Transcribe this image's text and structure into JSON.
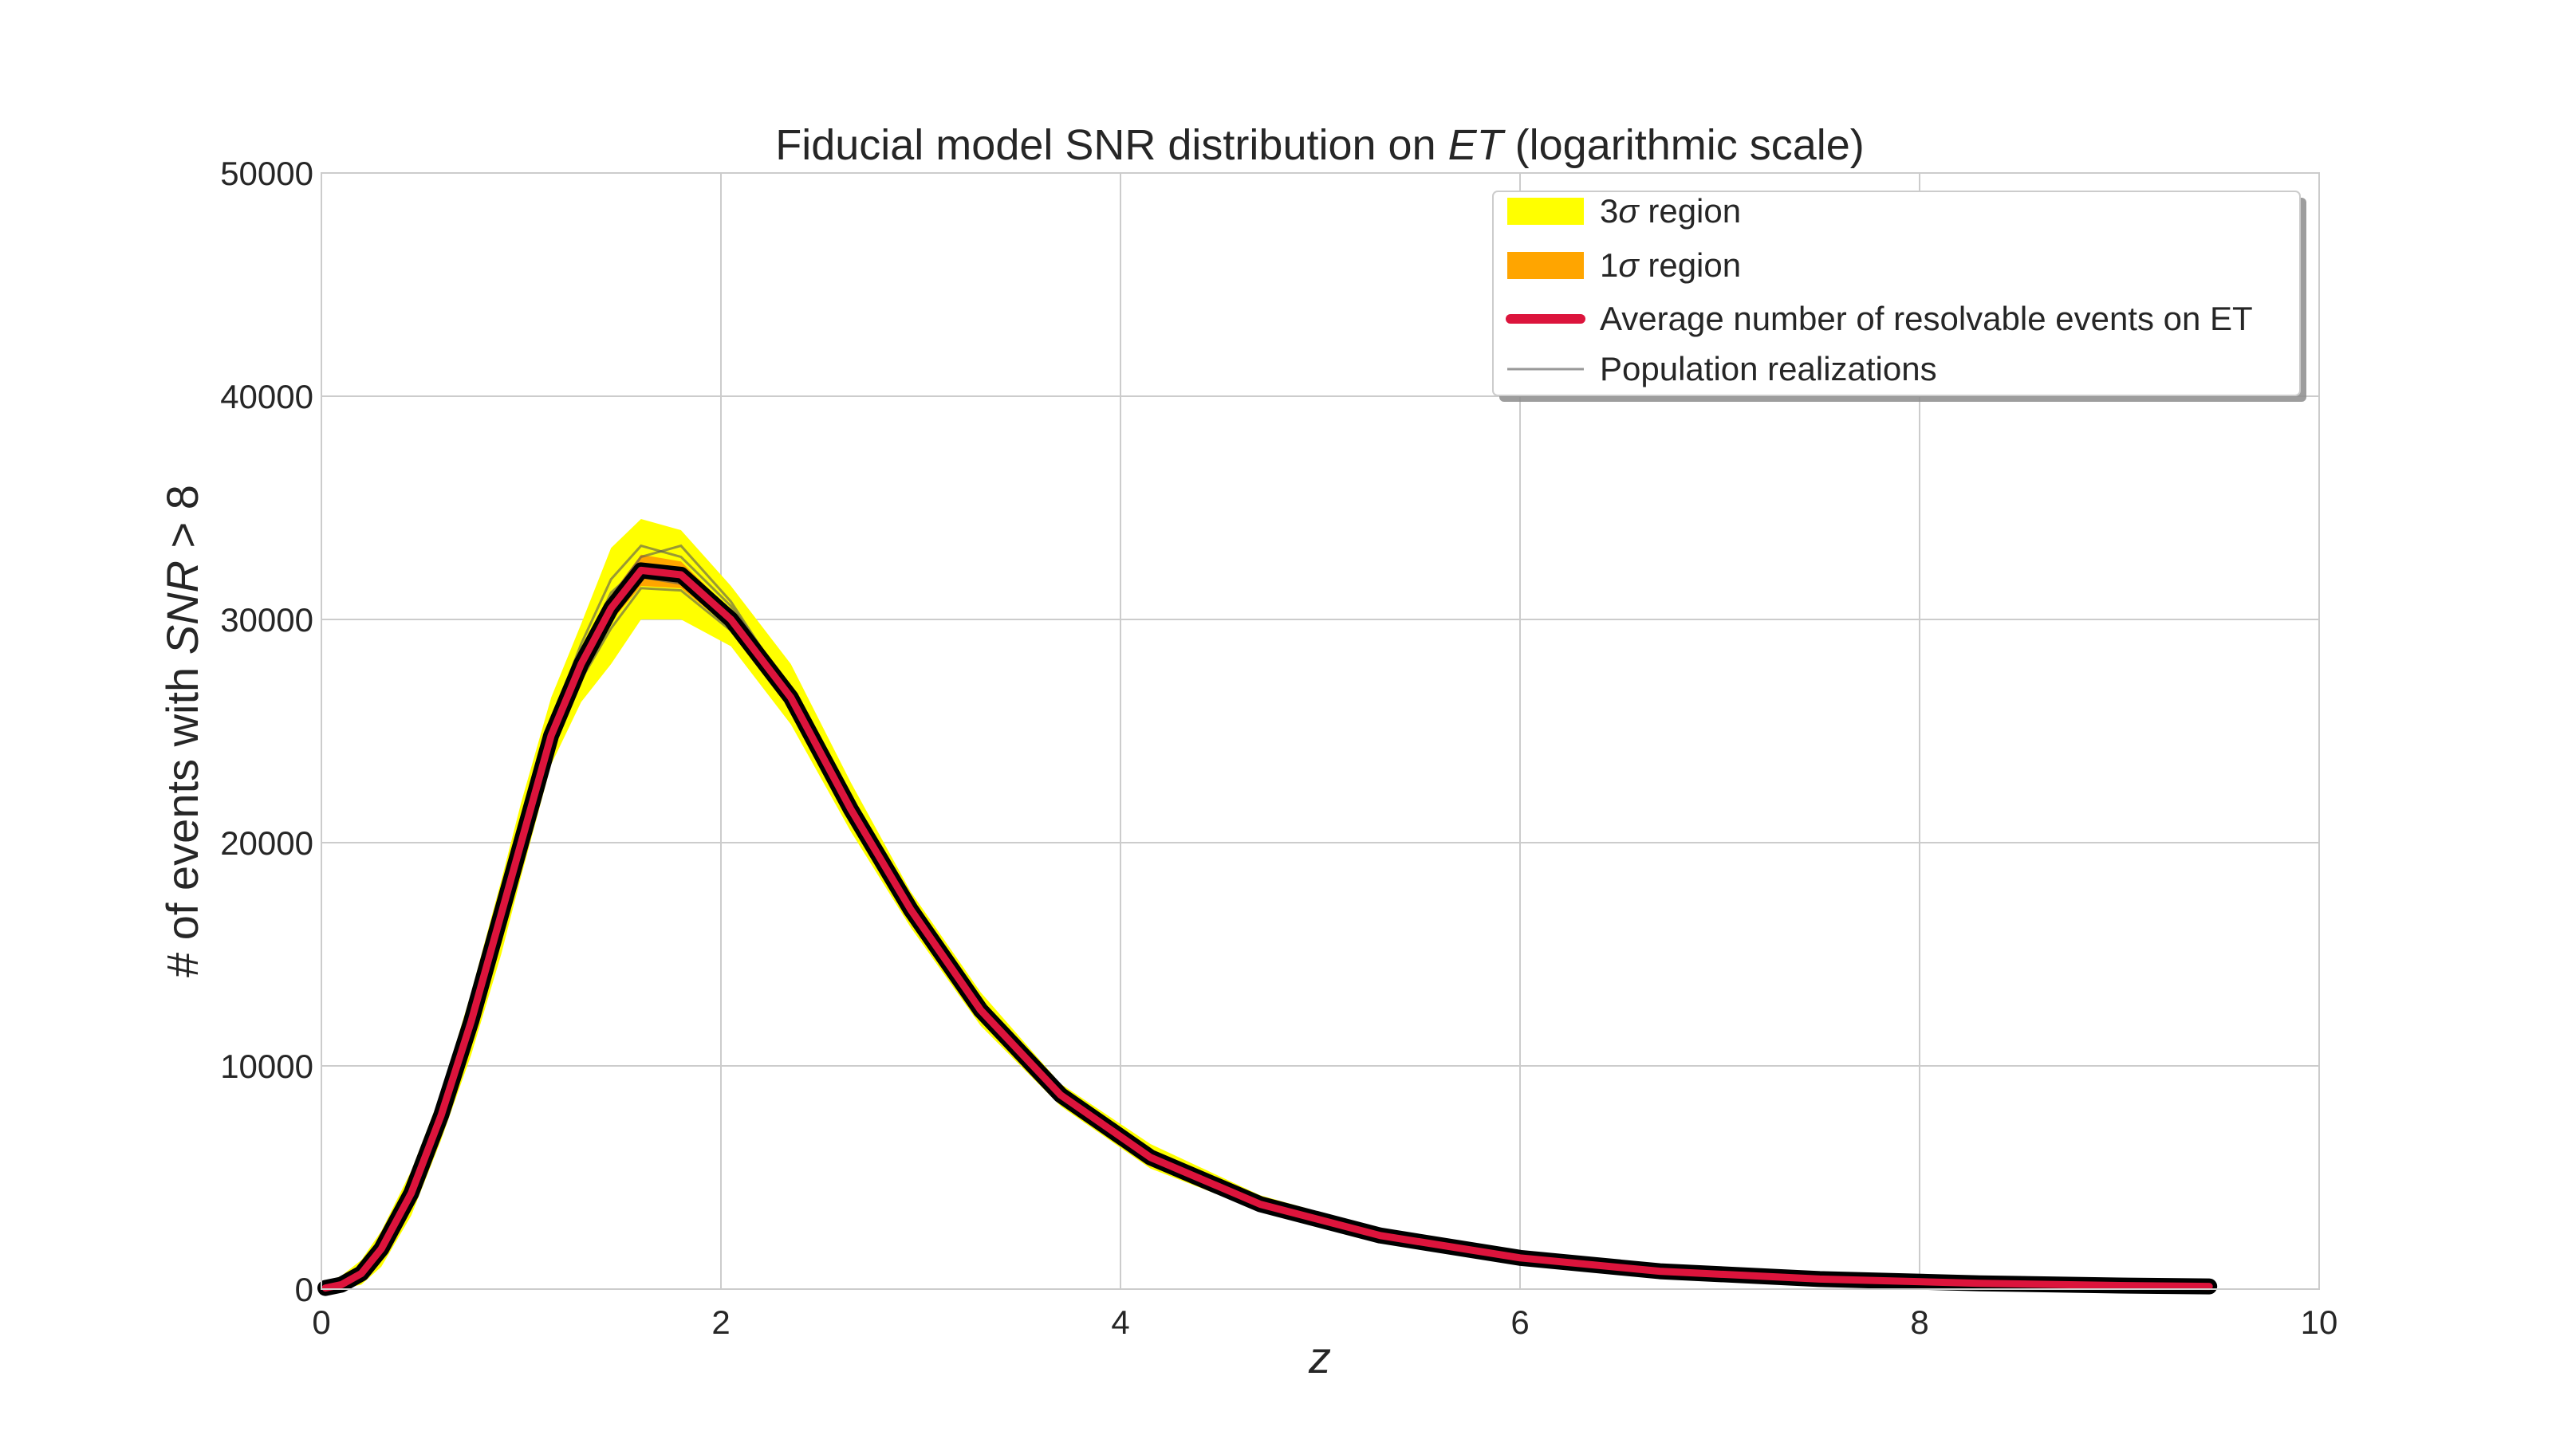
{
  "chart_data": {
    "type": "area",
    "title_parts": [
      {
        "text": "Fiducial model SNR distribution on ",
        "italic": false
      },
      {
        "text": "ET",
        "italic": true
      },
      {
        "text": " (logarithmic scale)",
        "italic": false
      }
    ],
    "xlabel": "z",
    "ylabel_parts": [
      {
        "text": "# of events with ",
        "italic": false
      },
      {
        "text": "SNR",
        "italic": true
      },
      {
        "text": " > 8",
        "italic": false
      }
    ],
    "xlim": [
      0,
      10
    ],
    "ylim": [
      0,
      50000
    ],
    "x_ticks": [
      "0",
      "2",
      "4",
      "6",
      "8",
      "10"
    ],
    "y_ticks": [
      "0",
      "10000",
      "20000",
      "30000",
      "40000",
      "50000"
    ],
    "grid": true,
    "legend_position": "top-right",
    "legend": [
      {
        "math": "3",
        "sym": "σ",
        "text": " region",
        "kind": "patch",
        "color": "#ffff00"
      },
      {
        "math": "1",
        "sym": "σ",
        "text": " region",
        "kind": "patch",
        "color": "#ffa500"
      },
      {
        "math": "",
        "sym": "",
        "text": "Average number of resolvable events on ET",
        "kind": "line-thick",
        "color": "#dc143c"
      },
      {
        "math": "",
        "sym": "",
        "text": "Population realizations",
        "kind": "line-thin",
        "color": "#999999"
      }
    ],
    "colors": {
      "sigma3": "#ffff00",
      "sigma1": "#ffa500",
      "mean": "#dc143c",
      "realizations": "#555555"
    },
    "x": [
      0.02,
      0.1,
      0.2,
      0.3,
      0.45,
      0.6,
      0.75,
      0.9,
      1.0,
      1.15,
      1.3,
      1.45,
      1.6,
      1.8,
      2.05,
      2.35,
      2.65,
      2.95,
      3.3,
      3.7,
      4.15,
      4.7,
      5.3,
      6.0,
      6.7,
      7.5,
      8.3,
      9.0,
      9.45
    ],
    "series": [
      {
        "name": "Average number of resolvable events on ET",
        "role": "mean",
        "values": [
          50,
          200,
          700,
          1800,
          4300,
          7800,
          12000,
          16800,
          20000,
          24800,
          28000,
          30500,
          32200,
          32000,
          30000,
          26500,
          21500,
          17000,
          12500,
          8700,
          5900,
          3800,
          2400,
          1400,
          800,
          450,
          260,
          160,
          120
        ]
      },
      {
        "name": "3σ region",
        "role": "sigma3",
        "lower": [
          0,
          0,
          200,
          1000,
          3300,
          6700,
          10500,
          15000,
          18500,
          23500,
          26300,
          28000,
          30000,
          30000,
          28800,
          25300,
          20500,
          16200,
          11800,
          8200,
          5400,
          3500,
          2200,
          1200,
          700,
          350,
          180,
          90,
          60
        ],
        "upper": [
          300,
          600,
          1300,
          2600,
          5300,
          8800,
          13300,
          18300,
          21800,
          26500,
          29800,
          33200,
          34500,
          34000,
          31500,
          28000,
          22700,
          17800,
          13300,
          9200,
          6500,
          4200,
          2700,
          1700,
          1000,
          600,
          360,
          240,
          180
        ]
      },
      {
        "name": "1σ region",
        "role": "sigma1",
        "lower": [
          20,
          120,
          550,
          1600,
          4100,
          7500,
          11600,
          16300,
          19600,
          24400,
          27500,
          29900,
          31500,
          31400,
          29600,
          26200,
          21300,
          16800,
          12300,
          8550,
          5750,
          3700,
          2320,
          1330,
          760,
          420,
          235,
          140,
          100
        ],
        "upper": [
          100,
          280,
          850,
          2000,
          4550,
          8100,
          12400,
          17300,
          20400,
          25200,
          28500,
          31100,
          32900,
          32600,
          30400,
          26800,
          21700,
          17200,
          12700,
          8850,
          6050,
          3900,
          2480,
          1470,
          840,
          480,
          285,
          180,
          140
        ]
      },
      {
        "role": "realization",
        "values": [
          60,
          250,
          800,
          2000,
          4700,
          8200,
          12600,
          17500,
          20600,
          25400,
          28900,
          31800,
          33300,
          32800,
          30600,
          26900,
          21800,
          17200,
          12700,
          8800,
          6000,
          3850,
          2450,
          1440,
          820,
          460,
          270,
          170,
          130
        ]
      },
      {
        "role": "realization",
        "values": [
          40,
          160,
          600,
          1650,
          4000,
          7400,
          11500,
          16200,
          19500,
          24300,
          27300,
          29600,
          31400,
          31300,
          29500,
          26100,
          21200,
          16800,
          12300,
          8600,
          5800,
          3750,
          2350,
          1360,
          780,
          440,
          250,
          150,
          110
        ]
      },
      {
        "role": "realization",
        "values": [
          70,
          220,
          750,
          1900,
          4400,
          8000,
          12300,
          17000,
          20300,
          25000,
          28300,
          31000,
          32800,
          33300,
          30800,
          26700,
          21600,
          17100,
          12600,
          8750,
          5950,
          3820,
          2420,
          1420,
          810,
          455,
          265,
          165,
          125
        ]
      },
      {
        "role": "realization",
        "values": [
          30,
          150,
          650,
          1700,
          4200,
          7600,
          11800,
          16500,
          19800,
          24600,
          27700,
          30100,
          31900,
          31600,
          29800,
          26300,
          21400,
          16900,
          12400,
          8650,
          5850,
          3780,
          2380,
          1380,
          790,
          445,
          255,
          155,
          115
        ]
      },
      {
        "role": "realization",
        "values": [
          80,
          300,
          900,
          2100,
          4600,
          8100,
          12200,
          17100,
          20200,
          25100,
          28400,
          31200,
          32400,
          32200,
          30200,
          26600,
          21550,
          17050,
          12550,
          8720,
          5920,
          3810,
          2410,
          1410,
          805,
          452,
          262,
          162,
          122
        ]
      }
    ]
  }
}
